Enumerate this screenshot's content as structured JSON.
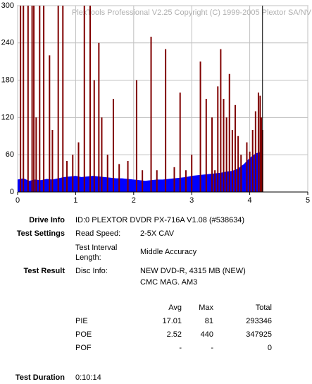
{
  "chart_data": {
    "type": "area-spikes",
    "watermark": "PlexTools Professional V2.25 Copyright (C) 1999-2005 Plextor SA/NV",
    "xlim": [
      0,
      5
    ],
    "xticks": [
      0,
      1,
      2,
      3,
      4,
      5
    ],
    "ylim": [
      0,
      300
    ],
    "yticks": [
      0,
      60,
      120,
      180,
      240,
      300
    ],
    "grid": true,
    "end_line_x": 4.22,
    "series": [
      {
        "name": "PIE",
        "color": "#0000ff",
        "x": [
          0,
          0.1,
          0.2,
          0.3,
          0.4,
          0.5,
          0.6,
          0.7,
          0.8,
          0.9,
          1.0,
          1.1,
          1.2,
          1.3,
          1.4,
          1.5,
          1.6,
          1.7,
          1.8,
          1.9,
          2.0,
          2.1,
          2.2,
          2.3,
          2.4,
          2.5,
          2.6,
          2.7,
          2.8,
          2.9,
          3.0,
          3.1,
          3.2,
          3.3,
          3.4,
          3.5,
          3.6,
          3.7,
          3.8,
          3.9,
          4.0,
          4.1,
          4.2
        ],
        "values": [
          20,
          22,
          18,
          20,
          19,
          21,
          20,
          22,
          24,
          25,
          26,
          24,
          25,
          26,
          25,
          24,
          23,
          22,
          22,
          21,
          20,
          19,
          18,
          19,
          20,
          20,
          21,
          22,
          23,
          24,
          26,
          27,
          28,
          29,
          30,
          31,
          33,
          34,
          38,
          45,
          55,
          62,
          65
        ]
      },
      {
        "name": "POE",
        "color": "#800000",
        "x": [
          0.05,
          0.1,
          0.18,
          0.25,
          0.28,
          0.32,
          0.38,
          0.45,
          0.55,
          0.6,
          0.7,
          0.78,
          0.85,
          0.95,
          1.05,
          1.15,
          1.25,
          1.32,
          1.4,
          1.45,
          1.55,
          1.65,
          1.75,
          1.9,
          2.05,
          2.15,
          2.3,
          2.4,
          2.55,
          2.7,
          2.8,
          2.9,
          3.0,
          3.15,
          3.25,
          3.35,
          3.4,
          3.45,
          3.5,
          3.55,
          3.6,
          3.65,
          3.7,
          3.75,
          3.8,
          3.85,
          3.95,
          4.0,
          4.05,
          4.1,
          4.15,
          4.18,
          4.2,
          4.22
        ],
        "values": [
          300,
          300,
          300,
          300,
          300,
          120,
          300,
          300,
          220,
          100,
          300,
          300,
          50,
          60,
          80,
          300,
          300,
          180,
          240,
          120,
          60,
          150,
          45,
          50,
          180,
          35,
          250,
          35,
          230,
          40,
          160,
          35,
          60,
          210,
          150,
          120,
          35,
          170,
          230,
          150,
          120,
          190,
          100,
          140,
          90,
          60,
          80,
          65,
          100,
          130,
          160,
          155,
          120,
          100
        ]
      }
    ]
  },
  "info": {
    "drive_info": {
      "label": "Drive Info",
      "value": "ID:0 PLEXTOR DVDR PX-716A V1.08 (#538634)"
    },
    "test_settings": {
      "label": "Test Settings",
      "read_speed": {
        "label": "Read Speed:",
        "value": "2-5X CAV"
      },
      "interval": {
        "label": [
          "Test Interval",
          "Length:"
        ],
        "value": "Middle Accuracy"
      }
    },
    "test_result": {
      "label": "Test Result",
      "disc_info": {
        "label": "Disc Info:",
        "value": [
          "NEW DVD-R, 4315 MB (NEW)",
          "CMC MAG. AM3"
        ]
      }
    },
    "table": {
      "header": [
        "Avg",
        "Max",
        "Total"
      ],
      "rows": [
        [
          "PIE",
          17.01,
          81,
          293346
        ],
        [
          "POE",
          2.52,
          440,
          347925
        ],
        [
          "POF",
          "-",
          "-",
          0
        ]
      ]
    },
    "test_duration": {
      "label": "Test Duration",
      "value": "0:10:14"
    }
  }
}
